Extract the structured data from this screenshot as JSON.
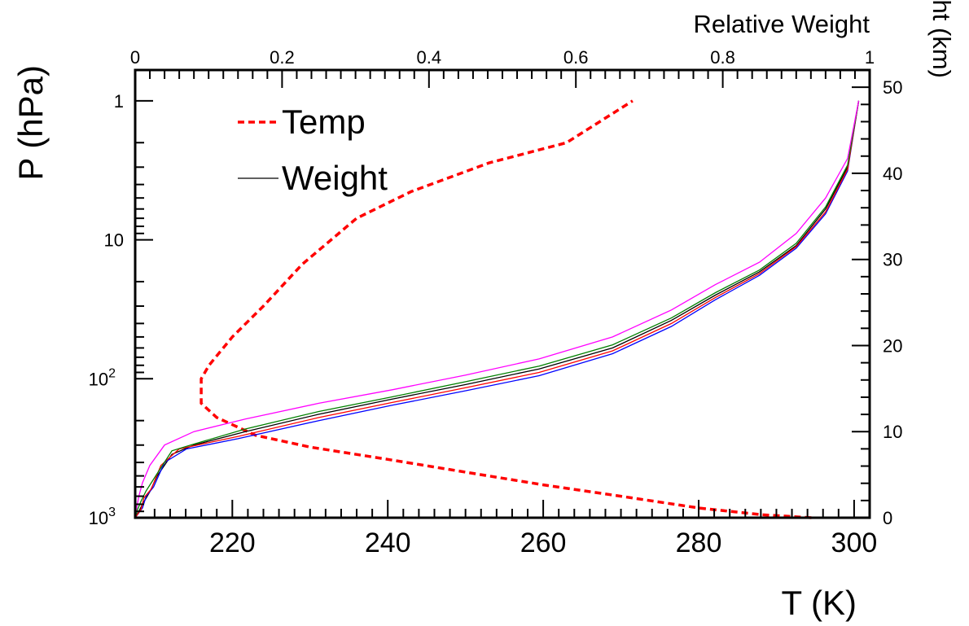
{
  "chart_data": {
    "type": "line",
    "xlabel": "T (K)",
    "x2label": "Relative Weight",
    "ylabel": "P (hPa)",
    "y2label": "Height (km)",
    "xlim": [
      207.5,
      302
    ],
    "x2lim": [
      0,
      1
    ],
    "ylim_pressure": [
      1000,
      0.6
    ],
    "y2lim": [
      0,
      52
    ],
    "y_scale": "log",
    "x_ticks": [
      220,
      240,
      260,
      280,
      300
    ],
    "x2_ticks": [
      0,
      0.2,
      0.4,
      0.6,
      0.8,
      1
    ],
    "y_ticks": [
      {
        "value": 1,
        "label": "1"
      },
      {
        "value": 10,
        "label": "10"
      },
      {
        "value": 100,
        "label": "10",
        "exponent": "2"
      },
      {
        "value": 1000,
        "label": "10",
        "exponent": "3"
      }
    ],
    "y2_ticks": [
      0,
      10,
      20,
      30,
      40,
      50
    ],
    "grid": false,
    "legend": {
      "placement": "top-left",
      "entries": [
        {
          "label": "Temp",
          "style": "dashed",
          "color": "#ff0000"
        },
        {
          "label": "Weight",
          "style": "solid",
          "color": "#000000"
        }
      ]
    },
    "series": [
      {
        "name": "Temp",
        "color": "#ff0000",
        "style": "dashed",
        "x_axis": "T (K)",
        "points": [
          [
            294.5,
            1000
          ],
          [
            288,
            950
          ],
          [
            280,
            850
          ],
          [
            270,
            700
          ],
          [
            260,
            580
          ],
          [
            250,
            470
          ],
          [
            240,
            380
          ],
          [
            230,
            310
          ],
          [
            223,
            255
          ],
          [
            218,
            190
          ],
          [
            216,
            150
          ],
          [
            216,
            100
          ],
          [
            217,
            80
          ],
          [
            220,
            50
          ],
          [
            224,
            30
          ],
          [
            229,
            15
          ],
          [
            236,
            7
          ],
          [
            243,
            4.5
          ],
          [
            253,
            2.8
          ],
          [
            263,
            2
          ],
          [
            271.5,
            1
          ]
        ]
      },
      {
        "name": "Weight",
        "color": "#000000",
        "style": "solid",
        "x_axis": "Relative Weight",
        "points": [
          [
            0,
            1000
          ],
          [
            0.005,
            900
          ],
          [
            0.01,
            800
          ],
          [
            0.02,
            650
          ],
          [
            0.03,
            500
          ],
          [
            0.05,
            350
          ],
          [
            0.08,
            300
          ],
          [
            0.15,
            240
          ],
          [
            0.25,
            180
          ],
          [
            0.35,
            140
          ],
          [
            0.45,
            110
          ],
          [
            0.55,
            85
          ],
          [
            0.65,
            60
          ],
          [
            0.73,
            38
          ],
          [
            0.79,
            25
          ],
          [
            0.85,
            17
          ],
          [
            0.9,
            11
          ],
          [
            0.94,
            6
          ],
          [
            0.97,
            3
          ],
          [
            0.985,
            1
          ]
        ]
      },
      {
        "color": "#0000ff",
        "style": "solid",
        "x_axis": "Relative Weight",
        "points": [
          [
            0,
            1000
          ],
          [
            0.01,
            850
          ],
          [
            0.015,
            700
          ],
          [
            0.025,
            600
          ],
          [
            0.04,
            400
          ],
          [
            0.07,
            320
          ],
          [
            0.14,
            270
          ],
          [
            0.25,
            200
          ],
          [
            0.35,
            155
          ],
          [
            0.45,
            122
          ],
          [
            0.55,
            95
          ],
          [
            0.65,
            66
          ],
          [
            0.73,
            42
          ],
          [
            0.79,
            27
          ],
          [
            0.85,
            18
          ],
          [
            0.9,
            11.5
          ],
          [
            0.94,
            6.5
          ],
          [
            0.97,
            3.2
          ],
          [
            0.985,
            1
          ]
        ]
      },
      {
        "color": "#ff0000",
        "style": "solid",
        "x_axis": "Relative Weight",
        "points": [
          [
            0,
            1000
          ],
          [
            0.008,
            870
          ],
          [
            0.012,
            720
          ],
          [
            0.022,
            620
          ],
          [
            0.035,
            420
          ],
          [
            0.06,
            320
          ],
          [
            0.14,
            260
          ],
          [
            0.25,
            190
          ],
          [
            0.35,
            148
          ],
          [
            0.45,
            116
          ],
          [
            0.55,
            90
          ],
          [
            0.65,
            63
          ],
          [
            0.73,
            40
          ],
          [
            0.79,
            26
          ],
          [
            0.85,
            17.5
          ],
          [
            0.9,
            11.2
          ],
          [
            0.94,
            6.3
          ],
          [
            0.97,
            3.1
          ],
          [
            0.985,
            1
          ]
        ]
      },
      {
        "color": "#008000",
        "style": "solid",
        "x_axis": "Relative Weight",
        "points": [
          [
            0,
            1000
          ],
          [
            0.003,
            880
          ],
          [
            0.008,
            760
          ],
          [
            0.015,
            640
          ],
          [
            0.03,
            480
          ],
          [
            0.05,
            330
          ],
          [
            0.08,
            295
          ],
          [
            0.15,
            230
          ],
          [
            0.25,
            172
          ],
          [
            0.35,
            135
          ],
          [
            0.45,
            105
          ],
          [
            0.55,
            81
          ],
          [
            0.65,
            57
          ],
          [
            0.73,
            36.5
          ],
          [
            0.79,
            24
          ],
          [
            0.85,
            16.5
          ],
          [
            0.9,
            10.6
          ],
          [
            0.94,
            5.8
          ],
          [
            0.97,
            2.9
          ],
          [
            0.985,
            1
          ]
        ]
      },
      {
        "color": "#ff00ff",
        "style": "solid",
        "x_axis": "Relative Weight",
        "points": [
          [
            0,
            1000
          ],
          [
            0.002,
            850
          ],
          [
            0.005,
            700
          ],
          [
            0.01,
            560
          ],
          [
            0.02,
            420
          ],
          [
            0.04,
            300
          ],
          [
            0.08,
            240
          ],
          [
            0.15,
            195
          ],
          [
            0.25,
            150
          ],
          [
            0.35,
            120
          ],
          [
            0.45,
            94
          ],
          [
            0.55,
            72
          ],
          [
            0.65,
            50
          ],
          [
            0.73,
            32
          ],
          [
            0.79,
            21
          ],
          [
            0.85,
            14.5
          ],
          [
            0.9,
            9
          ],
          [
            0.94,
            5
          ],
          [
            0.97,
            2.6
          ],
          [
            0.985,
            1
          ]
        ]
      }
    ]
  }
}
